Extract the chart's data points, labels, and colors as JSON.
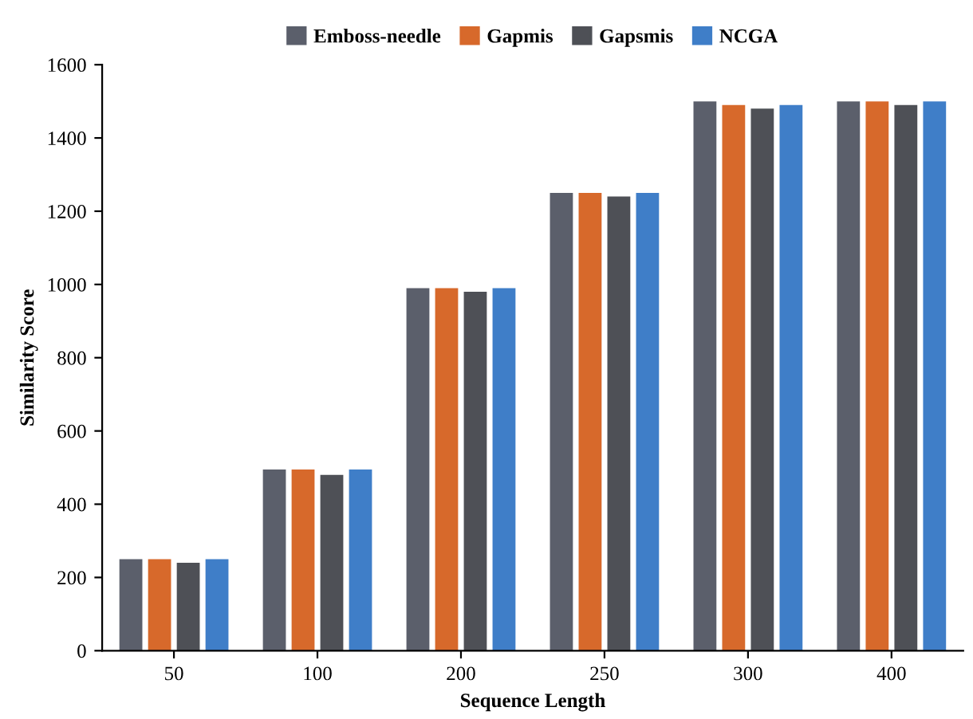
{
  "chart_data": {
    "type": "bar",
    "xlabel": "Sequence Length",
    "ylabel": "Similarity Score",
    "categories": [
      "50",
      "100",
      "200",
      "250",
      "300",
      "400"
    ],
    "series": [
      {
        "name": "Emboss-needle",
        "color": "#5b5f6b",
        "values": [
          250,
          495,
          990,
          1250,
          1500,
          1500
        ]
      },
      {
        "name": "Gapmis",
        "color": "#d7692b",
        "values": [
          250,
          495,
          990,
          1250,
          1490,
          1500
        ]
      },
      {
        "name": "Gapsmis",
        "color": "#4e5056",
        "values": [
          240,
          480,
          980,
          1240,
          1480,
          1490
        ]
      },
      {
        "name": "NCGA",
        "color": "#3f7ec8",
        "values": [
          250,
          495,
          990,
          1250,
          1490,
          1500
        ]
      }
    ],
    "ylim": [
      0,
      1600
    ],
    "yticks": [
      0,
      200,
      400,
      600,
      800,
      1000,
      1200,
      1400,
      1600
    ],
    "grid": false,
    "legend": "top"
  }
}
